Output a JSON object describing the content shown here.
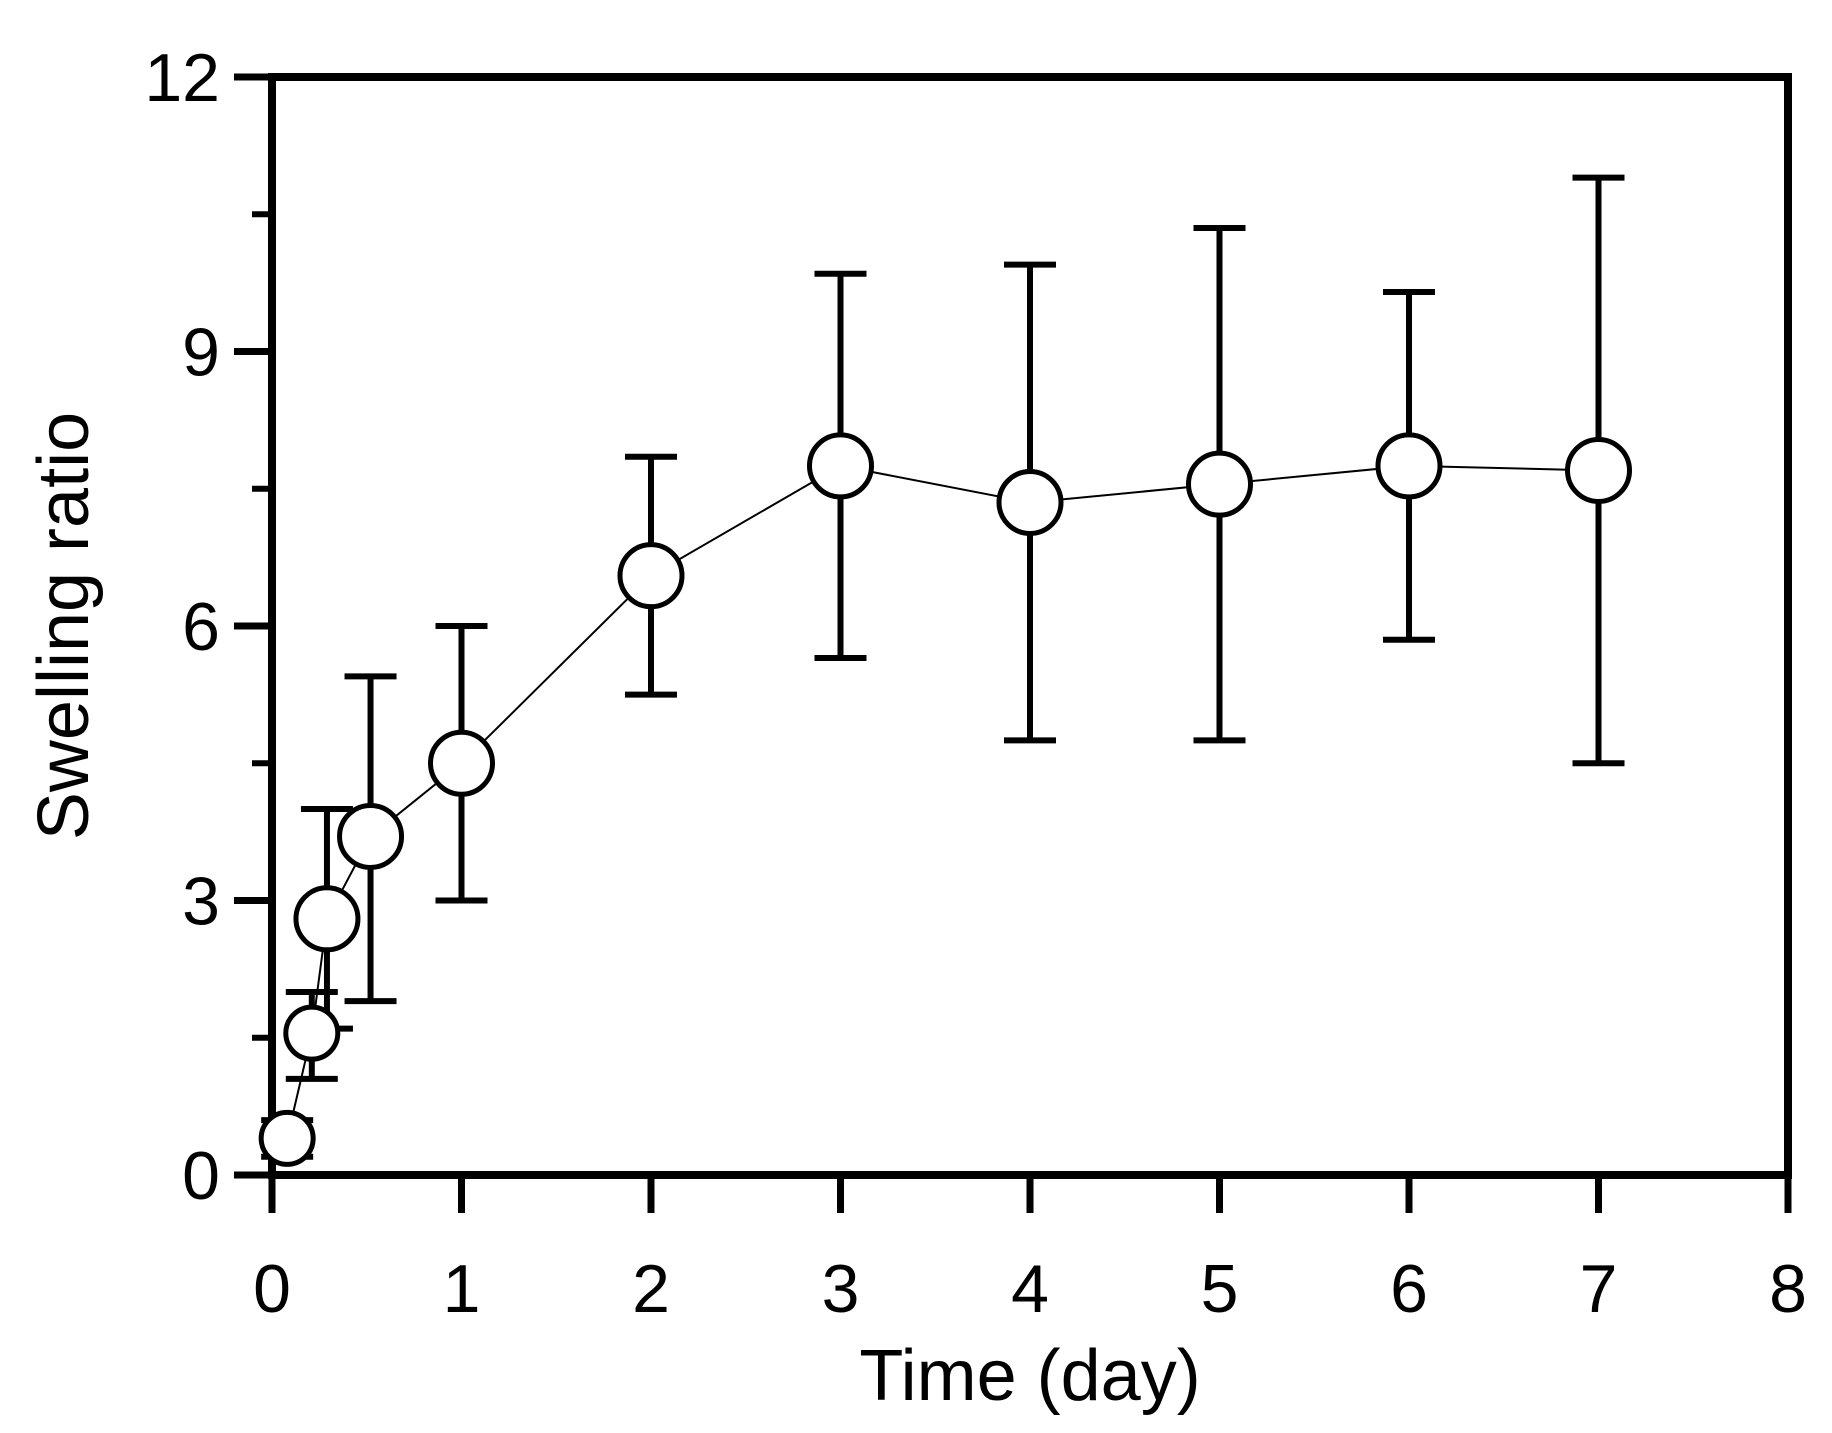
{
  "chart_data": {
    "type": "scatter",
    "title": "",
    "xlabel": "Time (day)",
    "ylabel": "Swelling ratio",
    "xlim": [
      0,
      8
    ],
    "ylim": [
      0,
      12
    ],
    "xticks": [
      0,
      1,
      2,
      3,
      4,
      5,
      6,
      7,
      8
    ],
    "yticks": [
      0,
      3,
      6,
      9,
      12
    ],
    "x_tick_labels": [
      "0",
      "1",
      "2",
      "3",
      "4",
      "5",
      "6",
      "7",
      "8"
    ],
    "y_tick_labels": [
      "0",
      "3",
      "6",
      "9",
      "12"
    ],
    "grid": false,
    "legend": "none",
    "marker": "open-circle",
    "connected": true,
    "series": [
      {
        "x": [
          0.08,
          0.21,
          0.29,
          0.52,
          1,
          2,
          3,
          4,
          5,
          6,
          7
        ],
        "y": [
          0.4,
          1.55,
          2.8,
          3.7,
          4.5,
          6.55,
          7.75,
          7.35,
          7.55,
          7.75,
          7.7
        ],
        "err_low": [
          0.2,
          0.5,
          1.2,
          1.8,
          1.5,
          1.3,
          2.1,
          2.6,
          2.8,
          1.9,
          3.2
        ],
        "err_high": [
          0.2,
          0.45,
          1.2,
          1.75,
          1.5,
          1.3,
          2.1,
          2.6,
          2.8,
          1.9,
          3.2
        ]
      }
    ],
    "colors": {
      "line": "#000000",
      "marker_fill": "#ffffff",
      "marker_edge": "#000000"
    }
  }
}
